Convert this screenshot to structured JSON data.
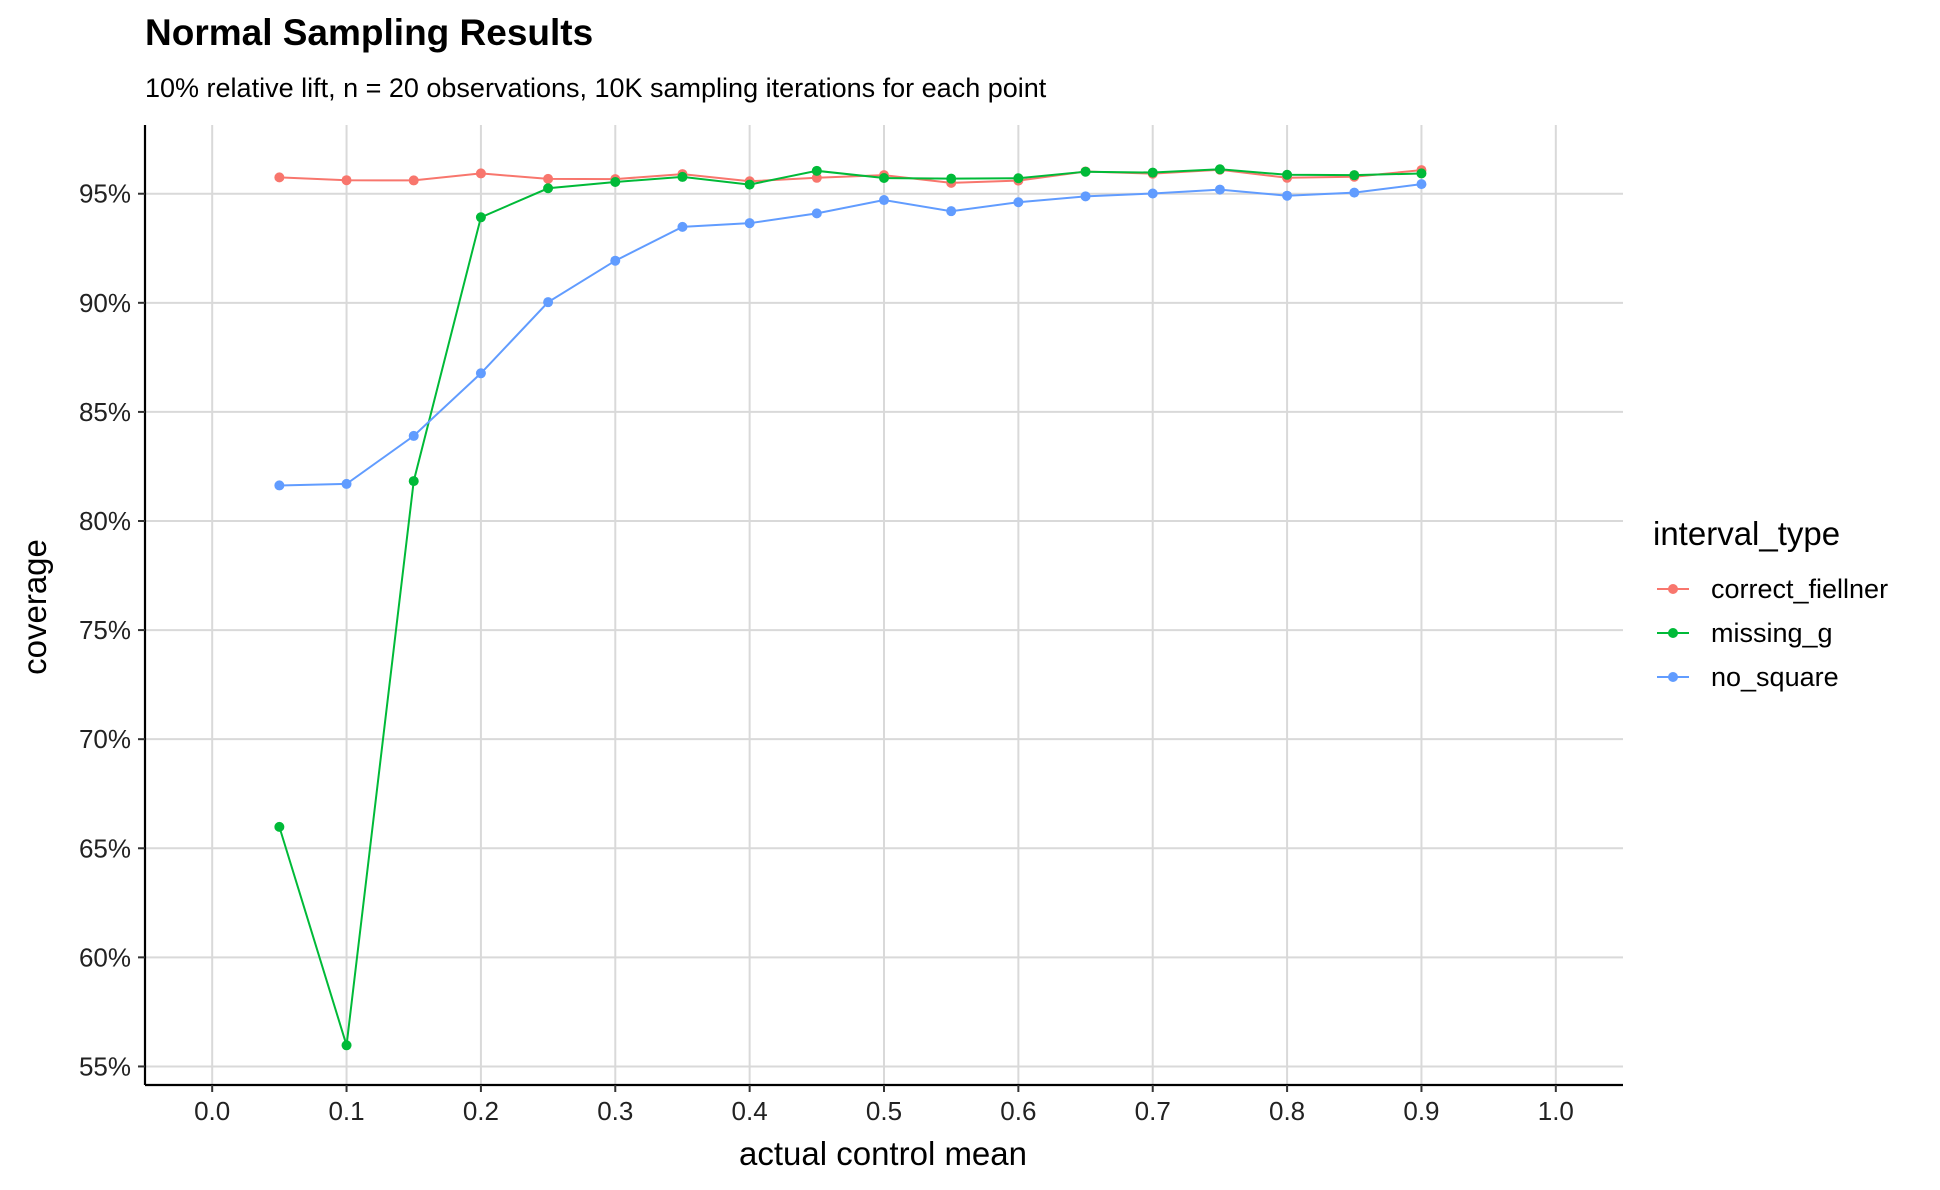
{
  "chart_data": {
    "type": "line",
    "title": "Normal Sampling Results",
    "subtitle": "10% relative lift, n = 20 observations, 10K sampling iterations for each point",
    "xlabel": "actual control mean",
    "ylabel": "coverage",
    "xlim": [
      -0.05,
      1.05
    ],
    "ylim": [
      0.5415,
      0.9815
    ],
    "x_ticks": [
      0.0,
      0.1,
      0.2,
      0.3,
      0.4,
      0.5,
      0.6,
      0.7,
      0.8,
      0.9,
      1.0
    ],
    "x_tick_labels": [
      "0.0",
      "0.1",
      "0.2",
      "0.3",
      "0.4",
      "0.5",
      "0.6",
      "0.7",
      "0.8",
      "0.9",
      "1.0"
    ],
    "y_ticks": [
      0.55,
      0.6,
      0.65,
      0.7,
      0.75,
      0.8,
      0.85,
      0.9,
      0.95
    ],
    "y_tick_labels": [
      "55%",
      "60%",
      "65%",
      "70%",
      "75%",
      "80%",
      "85%",
      "90%",
      "95%"
    ],
    "grid": true,
    "legend_title": "interval_type",
    "legend_position": "right",
    "x": [
      0.05,
      0.1,
      0.15,
      0.2,
      0.25,
      0.3,
      0.35,
      0.4,
      0.45,
      0.5,
      0.55,
      0.6,
      0.65,
      0.7,
      0.75,
      0.8,
      0.85,
      0.9
    ],
    "series": [
      {
        "name": "correct_fiellner",
        "color": "#F8766D",
        "values": [
          0.9575,
          0.9562,
          0.9561,
          0.9593,
          0.9568,
          0.9567,
          0.959,
          0.9557,
          0.9573,
          0.9585,
          0.955,
          0.956,
          0.9602,
          0.9592,
          0.961,
          0.9573,
          0.9578,
          0.9608
        ]
      },
      {
        "name": "missing_g",
        "color": "#00BA38",
        "values": [
          0.6598,
          0.5597,
          0.8183,
          0.9392,
          0.9525,
          0.9554,
          0.9577,
          0.9542,
          0.9605,
          0.9572,
          0.9569,
          0.9571,
          0.9601,
          0.9597,
          0.9612,
          0.9587,
          0.9585,
          0.9593
        ]
      },
      {
        "name": "no_square",
        "color": "#619CFF",
        "values": [
          0.8163,
          0.817,
          0.839,
          0.8677,
          0.9003,
          0.9193,
          0.9348,
          0.9365,
          0.941,
          0.9471,
          0.942,
          0.9461,
          0.9488,
          0.9501,
          0.9519,
          0.9491,
          0.9505,
          0.9544
        ]
      }
    ]
  }
}
